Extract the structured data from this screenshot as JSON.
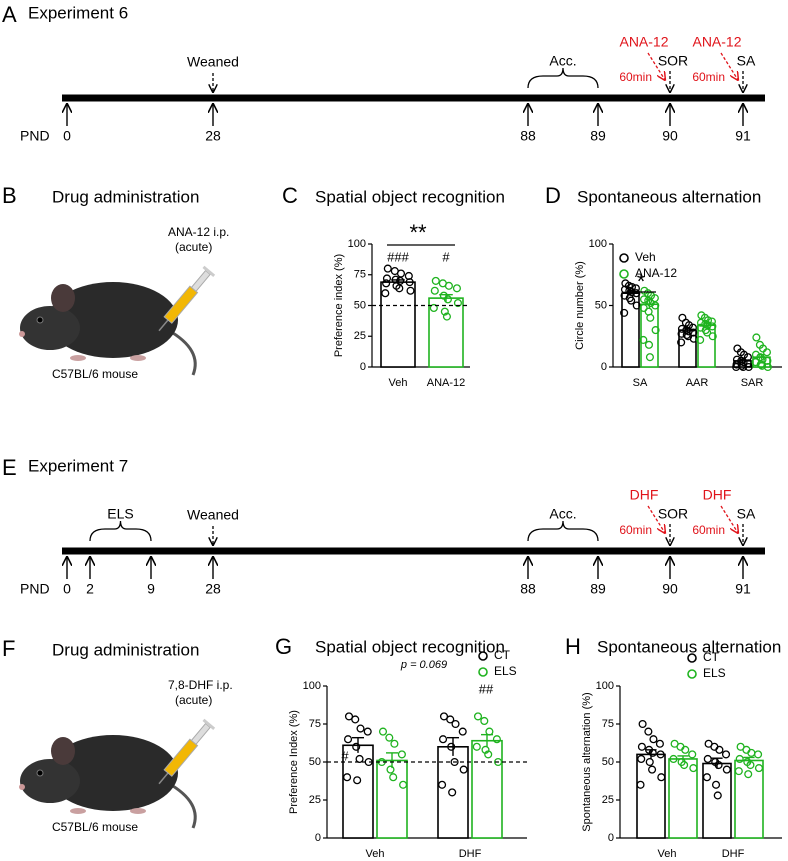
{
  "timelines": [
    {
      "panel": "A",
      "title": "Experiment 6",
      "axis_label": "PND",
      "days": [
        0,
        28,
        88,
        89,
        90,
        91
      ],
      "weaned": "Weaned",
      "acclimation": "Acc.",
      "drug": "ANA-12",
      "delay": "60min",
      "tests": [
        "SOR",
        "SA"
      ]
    },
    {
      "panel": "E",
      "title": "Experiment 7",
      "axis_label": "PND",
      "days": [
        0,
        2,
        9,
        28,
        88,
        89,
        90,
        91
      ],
      "stress": "ELS",
      "weaned": "Weaned",
      "acclimation": "Acc.",
      "drug": "DHF",
      "delay": "60min",
      "tests": [
        "SOR",
        "SA"
      ]
    }
  ],
  "administration": [
    {
      "panel": "B",
      "title": "Drug administration",
      "injection": [
        "ANA-12 i.p.",
        "(acute)"
      ],
      "strain": "C57BL/6 mouse"
    },
    {
      "panel": "F",
      "title": "Drug administration",
      "injection": [
        "7,8-DHF i.p.",
        "(acute)"
      ],
      "strain": "C57BL/6 mouse"
    }
  ],
  "chart_data": [
    {
      "type": "bar",
      "panel": "C",
      "title": "Spatial object recognition",
      "y_label": "Preference index (%)",
      "categories": [
        "Veh",
        "ANA-12"
      ],
      "colors": [
        "#000000",
        "#1fb31f"
      ],
      "values": [
        69,
        56
      ],
      "errors": [
        1.8,
        2.8
      ],
      "points": [
        [
          80,
          78,
          76,
          74,
          72,
          71,
          70,
          69,
          68,
          66,
          64,
          62,
          60
        ],
        [
          70,
          68,
          66,
          64,
          62,
          58,
          55,
          52,
          48,
          45,
          41
        ]
      ],
      "ylim": [
        0,
        100
      ],
      "yticks": [
        0,
        25,
        50,
        75,
        100
      ],
      "ref_line": 50,
      "annotations": [
        "###",
        "#",
        "**"
      ]
    },
    {
      "type": "grouped_bar",
      "panel": "D",
      "title": "Spontaneous alternation",
      "y_label": "Circle number (%)",
      "categories": [
        "SA",
        "AAR",
        "SAR"
      ],
      "legend": "upper left",
      "series": [
        {
          "name": "Veh",
          "color": "#000000",
          "values": [
            60,
            30,
            5
          ],
          "errors": [
            2,
            1.5,
            1.3
          ],
          "points": [
            [
              68,
              66,
              65,
              64,
              63,
              62,
              61,
              60,
              58,
              56,
              54,
              50,
              44
            ],
            [
              40,
              36,
              34,
              32,
              31,
              30,
              29,
              28,
              27,
              26,
              25,
              23,
              20
            ],
            [
              15,
              12,
              10,
              8,
              6,
              5,
              4,
              3,
              2,
              1,
              0,
              0,
              0
            ]
          ]
        },
        {
          "name": "ANA-12",
          "color": "#1fb31f",
          "values": [
            51,
            34,
            8
          ],
          "errors": [
            3.8,
            1.6,
            2
          ],
          "points": [
            [
              62,
              60,
              58,
              56,
              55,
              54,
              52,
              50,
              48,
              45,
              40,
              30,
              22,
              18,
              8
            ],
            [
              42,
              40,
              38,
              37,
              36,
              35,
              34,
              33,
              32,
              30,
              28,
              25,
              22
            ],
            [
              24,
              18,
              15,
              12,
              10,
              8,
              6,
              5,
              4,
              2,
              1,
              0
            ]
          ]
        }
      ],
      "ylim": [
        0,
        100
      ],
      "yticks": [
        0,
        50,
        100
      ],
      "annotations": [
        "*"
      ]
    },
    {
      "type": "grouped_bar",
      "panel": "G",
      "title": "Spatial object recognition",
      "y_label": "Preference Index (%)",
      "categories": [
        "Veh",
        "DHF"
      ],
      "legend": "upper right",
      "series": [
        {
          "name": "CT",
          "color": "#000000",
          "values": [
            61,
            60
          ],
          "errors": [
            5,
            6
          ],
          "points": [
            [
              80,
              78,
              72,
              70,
              65,
              60,
              52,
              50,
              40,
              38
            ],
            [
              80,
              78,
              75,
              70,
              65,
              60,
              50,
              45,
              35,
              30
            ]
          ]
        },
        {
          "name": "ELS",
          "color": "#1fb31f",
          "values": [
            51,
            64
          ],
          "errors": [
            5,
            4
          ],
          "points": [
            [
              70,
              66,
              62,
              55,
              50,
              45,
              40,
              35
            ],
            [
              80,
              77,
              70,
              65,
              60,
              58,
              55,
              50
            ]
          ]
        }
      ],
      "ylim": [
        0,
        100
      ],
      "yticks": [
        0,
        25,
        50,
        75,
        100
      ],
      "ref_line": 50,
      "annotations": [
        "#",
        "p = 0.069",
        "##"
      ]
    },
    {
      "type": "grouped_bar",
      "panel": "H",
      "title": "Spontaneous alternation",
      "y_label": "Spontaneous alternation (%)",
      "categories": [
        "Veh",
        "DHF"
      ],
      "legend": "upper right",
      "series": [
        {
          "name": "CT",
          "color": "#000000",
          "values": [
            55,
            49
          ],
          "errors": [
            3,
            3.5
          ],
          "points": [
            [
              75,
              70,
              65,
              62,
              60,
              58,
              56,
              55,
              52,
              50,
              45,
              40,
              35
            ],
            [
              62,
              60,
              58,
              55,
              52,
              50,
              48,
              45,
              40,
              35,
              28
            ]
          ]
        },
        {
          "name": "ELS",
          "color": "#1fb31f",
          "values": [
            52,
            51
          ],
          "errors": [
            2,
            2
          ],
          "points": [
            [
              62,
              60,
              58,
              55,
              52,
              50,
              48,
              46
            ],
            [
              60,
              58,
              56,
              55,
              52,
              50,
              48,
              46,
              44,
              42
            ]
          ]
        }
      ],
      "ylim": [
        0,
        100
      ],
      "yticks": [
        0,
        25,
        50,
        75,
        100
      ]
    }
  ]
}
